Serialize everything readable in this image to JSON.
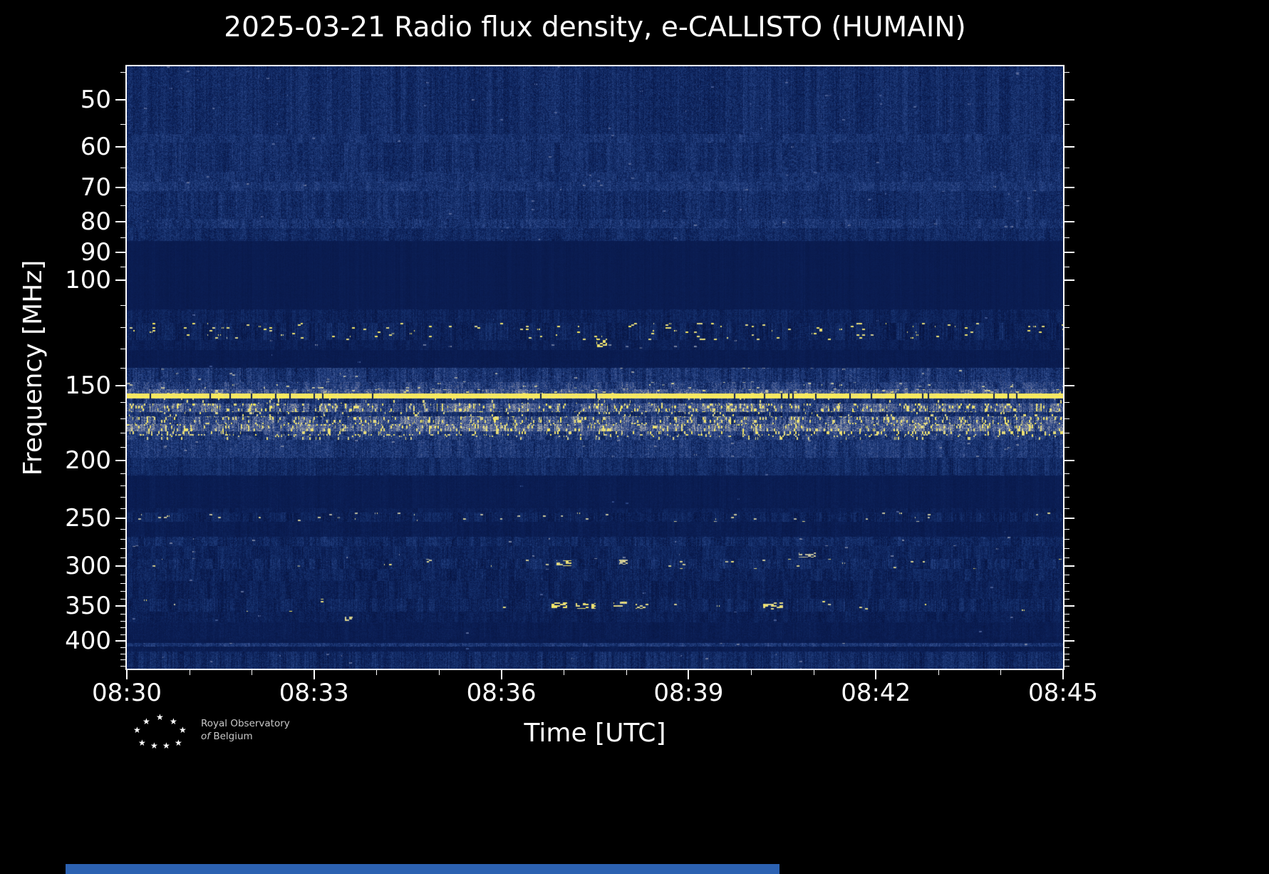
{
  "chart_data": {
    "type": "heatmap",
    "subtype": "solar-radio-spectrogram",
    "title": "2025-03-21 Radio flux density, e-CALLISTO (HUMAIN)",
    "xlabel": "Time [UTC]",
    "ylabel": "Frequency [MHz]",
    "x_ticks": [
      "08:30",
      "08:33",
      "08:36",
      "08:39",
      "08:42",
      "08:45"
    ],
    "x_range": [
      "08:30",
      "08:45"
    ],
    "x_span_minutes": 15,
    "x_major_interval_minutes": 3,
    "x_minor_interval_minutes": 1,
    "y_scale": "log",
    "y_increases_downward": true,
    "y_range_mhz": [
      44,
      445
    ],
    "y_ticks_mhz": [
      50,
      60,
      70,
      80,
      90,
      100,
      150,
      200,
      250,
      300,
      350,
      400
    ],
    "grid": false,
    "legend": "none",
    "colormap_stops": [
      [
        0,
        "#071440"
      ],
      [
        0.12,
        "#0b1e54"
      ],
      [
        0.25,
        "#15306c"
      ],
      [
        0.4,
        "#2c488a"
      ],
      [
        0.55,
        "#5c6a98"
      ],
      [
        0.7,
        "#9aa0a8"
      ],
      [
        0.85,
        "#d8d2a0"
      ],
      [
        1,
        "#ffee55"
      ]
    ],
    "bands": [
      {
        "f0": 44,
        "f1": 57,
        "base": 0.21,
        "noise": 0.13,
        "streak": 0.09,
        "speckle": 0.0015,
        "spk": 0.5
      },
      {
        "f0": 57,
        "f1": 59,
        "base": 0.25,
        "noise": 0.13,
        "streak": 0.09,
        "speckle": 0.002,
        "spk": 0.5
      },
      {
        "f0": 59,
        "f1": 66,
        "base": 0.22,
        "noise": 0.13,
        "streak": 0.09,
        "speckle": 0.0015,
        "spk": 0.5
      },
      {
        "f0": 66,
        "f1": 68.5,
        "base": 0.24,
        "noise": 0.13,
        "streak": 0.09,
        "speckle": 0.002,
        "spk": 0.5
      },
      {
        "f0": 68.5,
        "f1": 71,
        "base": 0.27,
        "noise": 0.13,
        "streak": 0.09,
        "speckle": 0.002,
        "spk": 0.55
      },
      {
        "f0": 71,
        "f1": 79,
        "base": 0.22,
        "noise": 0.13,
        "streak": 0.09,
        "speckle": 0.0015,
        "spk": 0.5
      },
      {
        "f0": 79,
        "f1": 82,
        "base": 0.25,
        "noise": 0.14,
        "streak": 0.1,
        "speckle": 0.002,
        "spk": 0.55
      },
      {
        "f0": 82,
        "f1": 86,
        "base": 0.2,
        "noise": 0.12,
        "streak": 0.08,
        "speckle": 0.001,
        "spk": 0.5
      },
      {
        "f0": 86,
        "f1": 112,
        "base": 0.1,
        "noise": 0.025,
        "streak": 0.02,
        "speckle": 0,
        "spk": 0
      },
      {
        "f0": 112,
        "f1": 118,
        "base": 0.15,
        "noise": 0.09,
        "streak": 0.08,
        "speckle": 0.001,
        "spk": 0.5
      },
      {
        "f0": 118,
        "f1": 126,
        "base": 0.15,
        "noise": 0.1,
        "streak": 0.13,
        "speckle": 0.03,
        "spk": 0.95
      },
      {
        "f0": 126,
        "f1": 131,
        "base": 0.13,
        "noise": 0.07,
        "streak": 0.06,
        "speckle": 0.004,
        "spk": 0.6
      },
      {
        "f0": 131,
        "f1": 140,
        "base": 0.1,
        "noise": 0.035,
        "streak": 0.02,
        "speckle": 0.0004,
        "spk": 0.45
      },
      {
        "f0": 140,
        "f1": 148,
        "base": 0.26,
        "noise": 0.15,
        "streak": 0.14,
        "speckle": 0.006,
        "spk": 0.7
      },
      {
        "f0": 148,
        "f1": 152,
        "base": 0.34,
        "noise": 0.17,
        "streak": 0.18,
        "speckle": 0.02,
        "spk": 0.8
      },
      {
        "f0": 152,
        "f1": 154.5,
        "base": 0.44,
        "noise": 0.18,
        "streak": 0.2,
        "speckle": 0.03,
        "spk": 0.85
      },
      {
        "f0": 154.5,
        "f1": 157.5,
        "base": 0.97,
        "noise": 0.04,
        "streak": 0.03,
        "speckle": 0,
        "spk": 0,
        "gaps": 0.035
      },
      {
        "f0": 157.5,
        "f1": 160.5,
        "base": 0.26,
        "noise": 0.15,
        "streak": 0.18,
        "speckle": 0.02,
        "spk": 0.9,
        "vchunk": true
      },
      {
        "f0": 160.5,
        "f1": 166,
        "base": 0.45,
        "noise": 0.2,
        "streak": 0.26,
        "speckle": 0.14,
        "spk": 0.95,
        "vchunk": true
      },
      {
        "f0": 166,
        "f1": 169,
        "base": 0.24,
        "noise": 0.14,
        "streak": 0.18,
        "speckle": 0.05,
        "spk": 0.9,
        "vchunk": true
      },
      {
        "f0": 169,
        "f1": 174,
        "base": 0.42,
        "noise": 0.2,
        "streak": 0.26,
        "speckle": 0.12,
        "spk": 0.95,
        "vchunk": true
      },
      {
        "f0": 174,
        "f1": 179,
        "base": 0.5,
        "noise": 0.2,
        "streak": 0.24,
        "speckle": 0.14,
        "spk": 0.95,
        "vchunk": true
      },
      {
        "f0": 179,
        "f1": 182,
        "base": 0.33,
        "noise": 0.16,
        "streak": 0.22,
        "speckle": 0.16,
        "spk": 0.95,
        "vchunk": true
      },
      {
        "f0": 182,
        "f1": 185,
        "base": 0.3,
        "noise": 0.15,
        "streak": 0.18,
        "speckle": 0.06,
        "spk": 0.9,
        "vchunk": true
      },
      {
        "f0": 185,
        "f1": 198,
        "base": 0.28,
        "noise": 0.15,
        "streak": 0.12,
        "speckle": 0.003,
        "spk": 0.6
      },
      {
        "f0": 198,
        "f1": 212,
        "base": 0.21,
        "noise": 0.11,
        "streak": 0.09,
        "speckle": 0.001,
        "spk": 0.5
      },
      {
        "f0": 212,
        "f1": 240,
        "base": 0.11,
        "noise": 0.035,
        "streak": 0.025,
        "speckle": 0.0002,
        "spk": 0.4
      },
      {
        "f0": 240,
        "f1": 244,
        "base": 0.13,
        "noise": 0.06,
        "streak": 0.05,
        "speckle": 0.001,
        "spk": 0.5
      },
      {
        "f0": 244,
        "f1": 253,
        "base": 0.15,
        "noise": 0.09,
        "streak": 0.11,
        "speckle": 0.014,
        "spk": 0.8
      },
      {
        "f0": 253,
        "f1": 268,
        "base": 0.11,
        "noise": 0.045,
        "streak": 0.035,
        "speckle": 0.0004,
        "spk": 0.4
      },
      {
        "f0": 268,
        "f1": 278,
        "base": 0.19,
        "noise": 0.11,
        "streak": 0.11,
        "speckle": 0.003,
        "spk": 0.6
      },
      {
        "f0": 278,
        "f1": 292,
        "base": 0.16,
        "noise": 0.09,
        "streak": 0.09,
        "speckle": 0.002,
        "spk": 0.6
      },
      {
        "f0": 292,
        "f1": 303,
        "base": 0.18,
        "noise": 0.11,
        "streak": 0.13,
        "speckle": 0.007,
        "spk": 0.85
      },
      {
        "f0": 303,
        "f1": 318,
        "base": 0.16,
        "noise": 0.1,
        "streak": 0.09,
        "speckle": 0.0015,
        "spk": 0.5
      },
      {
        "f0": 318,
        "f1": 340,
        "base": 0.14,
        "noise": 0.09,
        "streak": 0.09,
        "speckle": 0.0015,
        "spk": 0.5
      },
      {
        "f0": 340,
        "f1": 357,
        "base": 0.16,
        "noise": 0.1,
        "streak": 0.11,
        "speckle": 0.004,
        "spk": 0.9
      },
      {
        "f0": 357,
        "f1": 372,
        "base": 0.13,
        "noise": 0.08,
        "streak": 0.07,
        "speckle": 0.0015,
        "spk": 0.5
      },
      {
        "f0": 372,
        "f1": 398,
        "base": 0.11,
        "noise": 0.05,
        "streak": 0.04,
        "speckle": 0.0008,
        "spk": 0.5
      },
      {
        "f0": 398,
        "f1": 403,
        "base": 0.1,
        "noise": 0.035,
        "streak": 0.025,
        "speckle": 0,
        "spk": 0
      },
      {
        "f0": 403,
        "f1": 409,
        "base": 0.28,
        "noise": 0.13,
        "streak": 0.1,
        "speckle": 0.003,
        "spk": 0.6
      },
      {
        "f0": 409,
        "f1": 417,
        "base": 0.11,
        "noise": 0.045,
        "streak": 0.035,
        "speckle": 0.0004,
        "spk": 0.4
      },
      {
        "f0": 417,
        "f1": 445,
        "base": 0.19,
        "noise": 0.11,
        "streak": 0.12,
        "speckle": 0.002,
        "spk": 0.55
      }
    ],
    "blobs": [
      {
        "t": 6.9,
        "f": 348,
        "w": 0.28,
        "fh": 6,
        "i": 0.95,
        "d": 0.5
      },
      {
        "t": 7.35,
        "f": 349,
        "w": 0.3,
        "fh": 6,
        "i": 0.95,
        "d": 0.55
      },
      {
        "t": 7.9,
        "f": 347,
        "w": 0.2,
        "fh": 5,
        "i": 0.9,
        "d": 0.5
      },
      {
        "t": 8.25,
        "f": 350,
        "w": 0.18,
        "fh": 5,
        "i": 0.9,
        "d": 0.45
      },
      {
        "t": 10.35,
        "f": 348,
        "w": 0.3,
        "fh": 6,
        "i": 0.92,
        "d": 0.5
      },
      {
        "t": 7.0,
        "f": 296,
        "w": 0.22,
        "fh": 5,
        "i": 0.92,
        "d": 0.5
      },
      {
        "t": 7.95,
        "f": 295,
        "w": 0.12,
        "fh": 4,
        "i": 0.85,
        "d": 0.45
      },
      {
        "t": 3.55,
        "f": 367,
        "w": 0.1,
        "fh": 4,
        "i": 0.85,
        "d": 0.45
      },
      {
        "t": 10.85,
        "f": 64,
        "w": 0.9,
        "fh": 11,
        "i": 0.3,
        "d": 0.15
      },
      {
        "t": 10.9,
        "f": 287,
        "w": 0.25,
        "fh": 4,
        "i": 0.8,
        "d": 0.4
      },
      {
        "t": 7.6,
        "f": 127,
        "w": 0.15,
        "fh": 4,
        "i": 0.95,
        "d": 0.5
      }
    ],
    "notable_features": [
      "Continuous strong narrowband RFI line near 156 MHz across the whole interval",
      "Dense intermittent RFI / bright vertical streaking between about 160 and 185 MHz",
      "Speckled intermittent signals in the 118-131 MHz aeronautical band",
      "Speckled RFI bands near 244-253 MHz and 292-303 MHz",
      "Short bright bursts near 348 MHz around 08:37-08:38 and 08:40",
      "Quiet filtered bands at about 86-112 MHz and 212-240 MHz",
      "Broadband noisy background between 45 and 86 MHz",
      "Thin enhanced line near 405 MHz and noisy strip below 417 MHz"
    ]
  },
  "colors": {
    "background": "#000000",
    "frame": "#ffffff",
    "text": "#ffffff",
    "logo_text": "#c8c8c8",
    "footer_bar": "#2c62b2"
  },
  "footer": {
    "logo": {
      "line1": "Royal Observatory",
      "line2_italic": "of",
      "line2_rest": "Belgium",
      "star_glyph": "★"
    }
  }
}
